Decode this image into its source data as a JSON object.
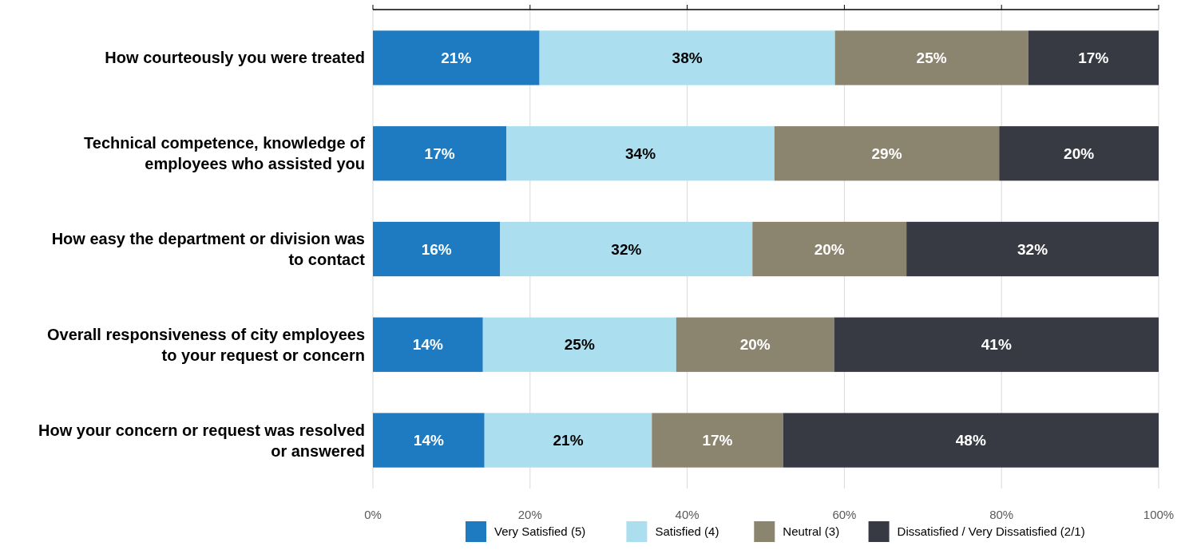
{
  "chart_data": {
    "type": "bar",
    "orientation": "horizontal",
    "stacked": true,
    "categories": [
      "How courteously you were treated",
      "Technical competence, knowledge of employees who assisted you",
      "How easy the department or division was to contact",
      "Overall responsiveness of city employees to your request or concern",
      "How your concern or request was resolved or answered"
    ],
    "series": [
      {
        "name": "Very Satisfied (5)",
        "color": "#1f7bc1",
        "values": [
          21.2,
          17.0,
          16.2,
          14.0,
          14.2
        ],
        "value_labels": [
          "21%",
          "17%",
          "16%",
          "14%",
          "14%"
        ]
      },
      {
        "name": "Satisfied (4)",
        "color": "#abdff0",
        "values": [
          37.6,
          34.1,
          32.1,
          24.6,
          21.3
        ],
        "value_labels": [
          "38%",
          "34%",
          "32%",
          "25%",
          "21%"
        ]
      },
      {
        "name": "Neutral (3)",
        "color": "#8b8570",
        "values": [
          24.6,
          28.6,
          19.6,
          20.1,
          16.7
        ],
        "value_labels": [
          "25%",
          "29%",
          "20%",
          "20%",
          "17%"
        ]
      },
      {
        "name": "Dissatisfied / Very Dissatisfied (2/1)",
        "color": "#373a42",
        "values": [
          16.6,
          20.3,
          32.1,
          41.3,
          47.8
        ],
        "value_labels": [
          "17%",
          "20%",
          "32%",
          "41%",
          "48%"
        ]
      }
    ],
    "xlim": [
      0,
      100
    ],
    "xticks": [
      {
        "value": 0,
        "label": "0%"
      },
      {
        "value": 20,
        "label": "20%"
      },
      {
        "value": 40,
        "label": "40%"
      },
      {
        "value": 60,
        "label": "60%"
      },
      {
        "value": 80,
        "label": "80%"
      },
      {
        "value": 100,
        "label": "100%"
      }
    ],
    "grid": "x",
    "legend": "bottom"
  }
}
